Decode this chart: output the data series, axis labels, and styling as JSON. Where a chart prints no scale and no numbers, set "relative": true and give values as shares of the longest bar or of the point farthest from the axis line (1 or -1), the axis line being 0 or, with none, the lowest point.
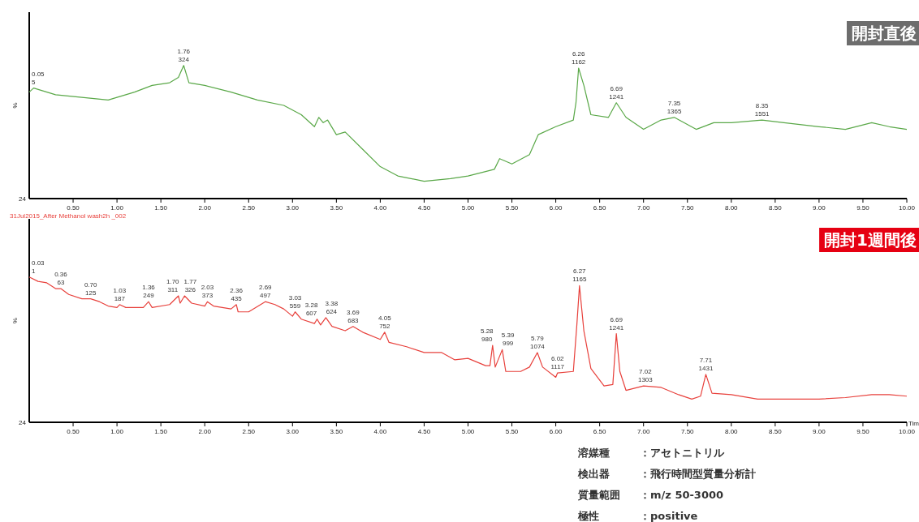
{
  "chart_data": [
    {
      "type": "line",
      "relative": true,
      "title": "開封直後",
      "ylabel": "%",
      "grid": false,
      "xlim": [
        0,
        10
      ],
      "xticks": [
        {
          "value": 0.5,
          "label": "0.50"
        },
        {
          "value": 1,
          "label": "1.00"
        },
        {
          "value": 1.5,
          "label": "1.50"
        },
        {
          "value": 2,
          "label": "2.00"
        },
        {
          "value": 2.5,
          "label": "2.50"
        },
        {
          "value": 3,
          "label": "3.00"
        },
        {
          "value": 3.5,
          "label": "3.50"
        },
        {
          "value": 4,
          "label": "4.00"
        },
        {
          "value": 4.5,
          "label": "4.50"
        },
        {
          "value": 5,
          "label": "5.00"
        },
        {
          "value": 5.5,
          "label": "5.50"
        },
        {
          "value": 6,
          "label": "6.00"
        },
        {
          "value": 6.5,
          "label": "6.50"
        },
        {
          "value": 7,
          "label": "7.00"
        },
        {
          "value": 7.5,
          "label": "7.50"
        },
        {
          "value": 8,
          "label": "8.00"
        },
        {
          "value": 8.5,
          "label": "8.50"
        },
        {
          "value": 9,
          "label": "9.00"
        },
        {
          "value": 9.5,
          "label": "9.50"
        },
        {
          "value": 10,
          "label": "10.00"
        }
      ],
      "series": [
        {
          "color": "#5aa848",
          "x": [
            0,
            0.05,
            0.3,
            0.6,
            0.9,
            1.0,
            1.2,
            1.4,
            1.6,
            1.7,
            1.76,
            1.82,
            2.0,
            2.3,
            2.6,
            2.9,
            3.1,
            3.25,
            3.3,
            3.35,
            3.4,
            3.5,
            3.6,
            3.8,
            4.0,
            4.2,
            4.5,
            4.8,
            5.0,
            5.3,
            5.36,
            5.5,
            5.7,
            5.8,
            6.0,
            6.2,
            6.23,
            6.26,
            6.32,
            6.4,
            6.6,
            6.69,
            6.8,
            7.0,
            7.2,
            7.35,
            7.6,
            7.8,
            8.0,
            8.35,
            8.6,
            9.0,
            9.3,
            9.6,
            9.8,
            10.0
          ],
          "values": [
            0.8,
            0.83,
            0.78,
            0.76,
            0.74,
            0.76,
            0.8,
            0.85,
            0.87,
            0.91,
            1.0,
            0.87,
            0.85,
            0.8,
            0.74,
            0.7,
            0.63,
            0.54,
            0.61,
            0.57,
            0.59,
            0.48,
            0.5,
            0.37,
            0.24,
            0.17,
            0.13,
            0.15,
            0.17,
            0.22,
            0.3,
            0.26,
            0.33,
            0.48,
            0.54,
            0.59,
            0.72,
            0.98,
            0.85,
            0.63,
            0.61,
            0.72,
            0.61,
            0.52,
            0.59,
            0.61,
            0.52,
            0.57,
            0.57,
            0.59,
            0.57,
            0.54,
            0.52,
            0.57,
            0.54,
            0.52
          ]
        }
      ],
      "annotations": [
        {
          "text": "0.05\n5",
          "x": 0.05,
          "y": 0.83
        },
        {
          "text": "1.76\n324",
          "x": 1.76,
          "y": 1.0
        },
        {
          "text": "6.26\n1162",
          "x": 6.26,
          "y": 0.98
        },
        {
          "text": "6.69\n1241",
          "x": 6.69,
          "y": 0.72
        },
        {
          "text": "7.35\n1365",
          "x": 7.35,
          "y": 0.61
        },
        {
          "text": "8.35\n1551",
          "x": 8.35,
          "y": 0.59
        },
        "24"
      ]
    },
    {
      "type": "line",
      "relative": true,
      "title": "開封1週間後",
      "ylabel": "%",
      "xlabel": "Tim",
      "grid": false,
      "xlim": [
        0,
        10
      ],
      "xticks": [
        {
          "value": 0.5,
          "label": "0.50"
        },
        {
          "value": 1,
          "label": "1.00"
        },
        {
          "value": 1.5,
          "label": "1.50"
        },
        {
          "value": 2,
          "label": "2.00"
        },
        {
          "value": 2.5,
          "label": "2.50"
        },
        {
          "value": 3,
          "label": "3.00"
        },
        {
          "value": 3.5,
          "label": "3.50"
        },
        {
          "value": 4,
          "label": "4.00"
        },
        {
          "value": 4.5,
          "label": "4.50"
        },
        {
          "value": 5,
          "label": "5.00"
        },
        {
          "value": 5.5,
          "label": "5.50"
        },
        {
          "value": 6,
          "label": "6.00"
        },
        {
          "value": 6.5,
          "label": "6.50"
        },
        {
          "value": 7,
          "label": "7.00"
        },
        {
          "value": 7.5,
          "label": "7.50"
        },
        {
          "value": 8,
          "label": "8.00"
        },
        {
          "value": 8.5,
          "label": "8.50"
        },
        {
          "value": 9,
          "label": "9.00"
        },
        {
          "value": 9.5,
          "label": "9.50"
        },
        {
          "value": 10,
          "label": "10.00"
        }
      ],
      "series": [
        {
          "color": "#e8413c",
          "x": [
            0,
            0.1,
            0.2,
            0.3,
            0.36,
            0.45,
            0.6,
            0.7,
            0.8,
            0.9,
            1.0,
            1.03,
            1.1,
            1.3,
            1.36,
            1.4,
            1.6,
            1.7,
            1.72,
            1.77,
            1.85,
            2.0,
            2.03,
            2.1,
            2.3,
            2.36,
            2.38,
            2.5,
            2.69,
            2.8,
            2.9,
            3.0,
            3.03,
            3.1,
            3.25,
            3.28,
            3.32,
            3.38,
            3.45,
            3.6,
            3.69,
            3.8,
            4.0,
            4.05,
            4.1,
            4.3,
            4.5,
            4.7,
            4.85,
            5.0,
            5.2,
            5.25,
            5.28,
            5.31,
            5.39,
            5.43,
            5.6,
            5.7,
            5.79,
            5.85,
            6.0,
            6.02,
            6.2,
            6.24,
            6.27,
            6.32,
            6.4,
            6.55,
            6.65,
            6.69,
            6.73,
            6.8,
            7.0,
            7.2,
            7.4,
            7.55,
            7.65,
            7.71,
            7.78,
            8.0,
            8.3,
            8.6,
            9.0,
            9.3,
            9.6,
            9.8,
            10.0
          ],
          "values": [
            1.0,
            0.97,
            0.96,
            0.92,
            0.92,
            0.88,
            0.85,
            0.85,
            0.83,
            0.8,
            0.79,
            0.81,
            0.79,
            0.79,
            0.83,
            0.79,
            0.81,
            0.87,
            0.82,
            0.87,
            0.82,
            0.8,
            0.83,
            0.8,
            0.78,
            0.81,
            0.76,
            0.76,
            0.83,
            0.81,
            0.78,
            0.73,
            0.76,
            0.71,
            0.68,
            0.71,
            0.67,
            0.72,
            0.66,
            0.63,
            0.66,
            0.62,
            0.57,
            0.62,
            0.55,
            0.52,
            0.48,
            0.48,
            0.43,
            0.44,
            0.39,
            0.39,
            0.53,
            0.38,
            0.5,
            0.35,
            0.35,
            0.38,
            0.48,
            0.38,
            0.31,
            0.34,
            0.35,
            0.67,
            0.94,
            0.63,
            0.37,
            0.25,
            0.26,
            0.61,
            0.35,
            0.22,
            0.25,
            0.24,
            0.19,
            0.16,
            0.18,
            0.33,
            0.2,
            0.19,
            0.16,
            0.16,
            0.16,
            0.17,
            0.19,
            0.19,
            0.18
          ]
        }
      ],
      "annotations": [
        {
          "text": "0.03\n1",
          "x": 0.03,
          "y": 1.0
        },
        {
          "text": "0.36\n63",
          "x": 0.36,
          "y": 0.92
        },
        {
          "text": "0.70\n125",
          "x": 0.7,
          "y": 0.85
        },
        {
          "text": "1.03\n187",
          "x": 1.03,
          "y": 0.81
        },
        {
          "text": "1.36\n249",
          "x": 1.36,
          "y": 0.83
        },
        {
          "text": "1.70\n311",
          "x": 1.7,
          "y": 0.87
        },
        {
          "text": "1.77\n326",
          "x": 1.77,
          "y": 0.87
        },
        {
          "text": "2.03\n373",
          "x": 2.03,
          "y": 0.83
        },
        {
          "text": "2.36\n435",
          "x": 2.36,
          "y": 0.81
        },
        {
          "text": "2.69\n497",
          "x": 2.69,
          "y": 0.83
        },
        {
          "text": "3.03\n559",
          "x": 3.03,
          "y": 0.76
        },
        {
          "text": "3.28\n607",
          "x": 3.28,
          "y": 0.71
        },
        {
          "text": "3.38\n624",
          "x": 3.38,
          "y": 0.72
        },
        {
          "text": "3.69\n683",
          "x": 3.69,
          "y": 0.66
        },
        {
          "text": "4.05\n752",
          "x": 4.05,
          "y": 0.62
        },
        {
          "text": "5.28\n980",
          "x": 5.28,
          "y": 0.53
        },
        {
          "text": "5.39\n999",
          "x": 5.39,
          "y": 0.5
        },
        {
          "text": "5.79\n1074",
          "x": 5.79,
          "y": 0.48
        },
        {
          "text": "6.02\n1117",
          "x": 6.02,
          "y": 0.34
        },
        {
          "text": "6.27\n1165",
          "x": 6.27,
          "y": 0.94
        },
        {
          "text": "6.69\n1241",
          "x": 6.69,
          "y": 0.61
        },
        {
          "text": "7.02\n1303",
          "x": 7.02,
          "y": 0.25
        },
        {
          "text": "7.71\n1431",
          "x": 7.71,
          "y": 0.33
        },
        "31Jul2015_After Methanol wash2h _002",
        "24"
      ]
    },
    {
      "type": "other",
      "annotations": [
        "溶媒種　：アセトニトリル",
        "検出器　：飛行時間型質量分析計",
        "質量範囲：m/z 50-3000",
        "極性　　：positive"
      ]
    }
  ]
}
